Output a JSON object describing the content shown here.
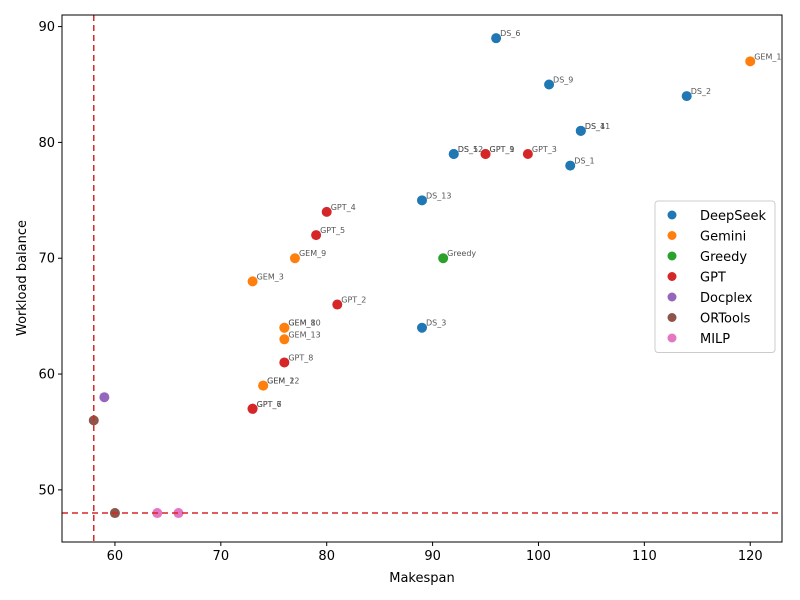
{
  "chart_data": {
    "type": "scatter",
    "title": "",
    "xlabel": "Makespan",
    "ylabel": "Workload balance",
    "xlim": [
      55,
      123
    ],
    "ylim": [
      45.5,
      91
    ],
    "xticks": [
      60,
      70,
      80,
      90,
      100,
      110,
      120
    ],
    "yticks": [
      50,
      60,
      70,
      80,
      90
    ],
    "grid": false,
    "legend_position": "center-right",
    "reference_lines": {
      "x": 58,
      "y": 48,
      "color": "#d62728",
      "style": "dashed"
    },
    "series": [
      {
        "name": "DeepSeek",
        "color": "#1f77b4",
        "points": [
          {
            "x": 96,
            "y": 89,
            "label": "DS_6"
          },
          {
            "x": 101,
            "y": 85,
            "label": "DS_9"
          },
          {
            "x": 114,
            "y": 84,
            "label": "DS_2"
          },
          {
            "x": 104,
            "y": 81,
            "label": "DS_11"
          },
          {
            "x": 104,
            "y": 81,
            "label": "DS_4"
          },
          {
            "x": 92,
            "y": 79,
            "label": "DS_12"
          },
          {
            "x": 92,
            "y": 79,
            "label": "DS_5"
          },
          {
            "x": 103,
            "y": 78,
            "label": "DS_1"
          },
          {
            "x": 89,
            "y": 75,
            "label": "DS_13"
          },
          {
            "x": 89,
            "y": 64,
            "label": "DS_3"
          }
        ]
      },
      {
        "name": "Gemini",
        "color": "#ff7f0e",
        "points": [
          {
            "x": 120,
            "y": 87,
            "label": "GEM_1"
          },
          {
            "x": 77,
            "y": 70,
            "label": "GEM_9"
          },
          {
            "x": 73,
            "y": 68,
            "label": "GEM_3"
          },
          {
            "x": 76,
            "y": 64,
            "label": "GEM_10"
          },
          {
            "x": 76,
            "y": 64,
            "label": "GEM_8"
          },
          {
            "x": 76,
            "y": 63,
            "label": "GEM_13"
          },
          {
            "x": 74,
            "y": 59,
            "label": "GEM_12"
          },
          {
            "x": 74,
            "y": 59,
            "label": "GEM_2"
          }
        ]
      },
      {
        "name": "Greedy",
        "color": "#2ca02c",
        "points": [
          {
            "x": 91,
            "y": 70,
            "label": "Greedy"
          }
        ]
      },
      {
        "name": "GPT",
        "color": "#d62728",
        "points": [
          {
            "x": 95,
            "y": 79,
            "label": "GPT_1"
          },
          {
            "x": 95,
            "y": 79,
            "label": "GPT_9"
          },
          {
            "x": 99,
            "y": 79,
            "label": "GPT_3"
          },
          {
            "x": 80,
            "y": 74,
            "label": "GPT_4"
          },
          {
            "x": 79,
            "y": 72,
            "label": "GPT_5"
          },
          {
            "x": 81,
            "y": 66,
            "label": "GPT_2"
          },
          {
            "x": 76,
            "y": 61,
            "label": "GPT_8"
          },
          {
            "x": 73,
            "y": 57,
            "label": "GPT_6"
          },
          {
            "x": 73,
            "y": 57,
            "label": "GPT_7"
          }
        ]
      },
      {
        "name": "Docplex",
        "color": "#9467bd",
        "points": [
          {
            "x": 59,
            "y": 58,
            "label": ""
          }
        ]
      },
      {
        "name": "ORTools",
        "color": "#8c564b",
        "points": [
          {
            "x": 58,
            "y": 56,
            "label": ""
          },
          {
            "x": 60,
            "y": 48,
            "label": ""
          }
        ]
      },
      {
        "name": "MILP",
        "color": "#e377c2",
        "points": [
          {
            "x": 64,
            "y": 48,
            "label": ""
          },
          {
            "x": 66,
            "y": 48,
            "label": ""
          }
        ]
      }
    ]
  }
}
